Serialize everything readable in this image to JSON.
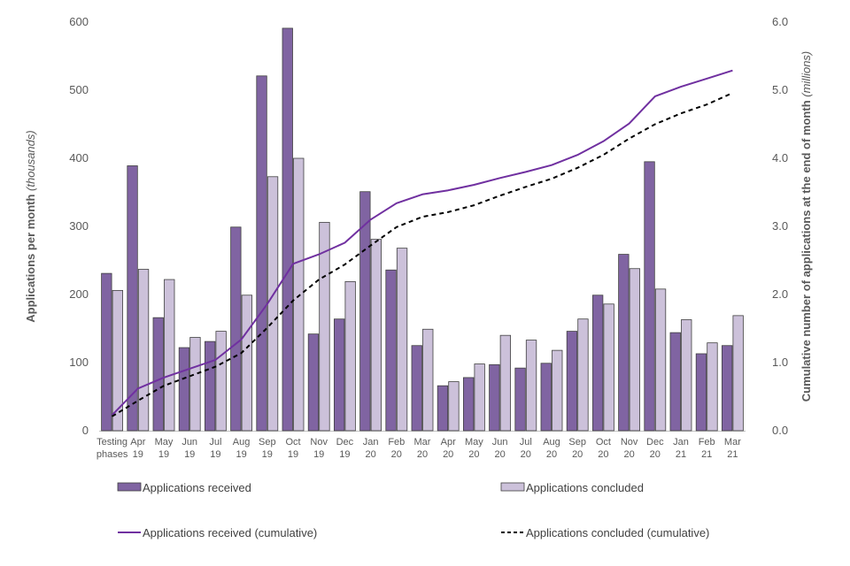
{
  "chart_data": {
    "type": "bar",
    "categories": [
      [
        "Testing",
        "phases"
      ],
      [
        "Apr",
        "19"
      ],
      [
        "May",
        "19"
      ],
      [
        "Jun",
        "19"
      ],
      [
        "Jul",
        "19"
      ],
      [
        "Aug",
        "19"
      ],
      [
        "Sep",
        "19"
      ],
      [
        "Oct",
        "19"
      ],
      [
        "Nov",
        "19"
      ],
      [
        "Dec",
        "19"
      ],
      [
        "Jan",
        "20"
      ],
      [
        "Feb",
        "20"
      ],
      [
        "Mar",
        "20"
      ],
      [
        "Apr",
        "20"
      ],
      [
        "May",
        "20"
      ],
      [
        "Jun",
        "20"
      ],
      [
        "Jul",
        "20"
      ],
      [
        "Aug",
        "20"
      ],
      [
        "Sep",
        "20"
      ],
      [
        "Oct",
        "20"
      ],
      [
        "Nov",
        "20"
      ],
      [
        "Dec",
        "20"
      ],
      [
        "Jan",
        "21"
      ],
      [
        "Feb",
        "21"
      ],
      [
        "Mar",
        "21"
      ]
    ],
    "series": [
      {
        "name": "Applications received",
        "kind": "bar",
        "axis": "left",
        "color": "#8064a2",
        "values": [
          231,
          389,
          166,
          122,
          131,
          299,
          521,
          591,
          142,
          164,
          351,
          236,
          125,
          66,
          78,
          97,
          92,
          99,
          146,
          199,
          259,
          395,
          144,
          113,
          125
        ]
      },
      {
        "name": "Applications concluded",
        "kind": "bar",
        "axis": "left",
        "color": "#ccc1da",
        "values": [
          206,
          237,
          222,
          137,
          146,
          199,
          373,
          400,
          306,
          219,
          281,
          268,
          149,
          72,
          98,
          140,
          133,
          118,
          164,
          186,
          238,
          208,
          163,
          129,
          169
        ]
      },
      {
        "name": "Applications received (cumulative)",
        "kind": "line",
        "axis": "right",
        "color": "#7030a0",
        "dash": "",
        "values": [
          0.23,
          0.62,
          0.78,
          0.91,
          1.04,
          1.34,
          1.86,
          2.45,
          2.59,
          2.76,
          3.1,
          3.34,
          3.47,
          3.53,
          3.61,
          3.71,
          3.8,
          3.9,
          4.05,
          4.25,
          4.51,
          4.91,
          5.05,
          5.17,
          5.29
        ]
      },
      {
        "name": "Applications concluded (cumulative)",
        "kind": "line",
        "axis": "right",
        "color": "#000000",
        "dash": "5,4",
        "values": [
          0.21,
          0.44,
          0.66,
          0.8,
          0.94,
          1.14,
          1.51,
          1.91,
          2.22,
          2.44,
          2.72,
          2.99,
          3.14,
          3.21,
          3.31,
          3.45,
          3.58,
          3.7,
          3.86,
          4.05,
          4.29,
          4.5,
          4.66,
          4.79,
          4.96
        ]
      }
    ],
    "yleft": {
      "label_main": "Applications per month ",
      "label_unit": "(thousands)",
      "ylim": [
        0,
        600
      ],
      "ticks": [
        "0",
        "100",
        "200",
        "300",
        "400",
        "500",
        "600"
      ]
    },
    "yright": {
      "label_main": "Cumulative number of applications at the end of month ",
      "label_unit": "(millions)",
      "ylim": [
        0,
        6
      ],
      "ticks": [
        "0.0",
        "1.0",
        "2.0",
        "3.0",
        "4.0",
        "5.0",
        "6.0"
      ]
    },
    "legend": {
      "position": "bottom",
      "items": [
        "Applications received",
        "Applications concluded",
        "Applications received (cumulative)",
        "Applications concluded (cumulative)"
      ]
    },
    "grid": false
  }
}
